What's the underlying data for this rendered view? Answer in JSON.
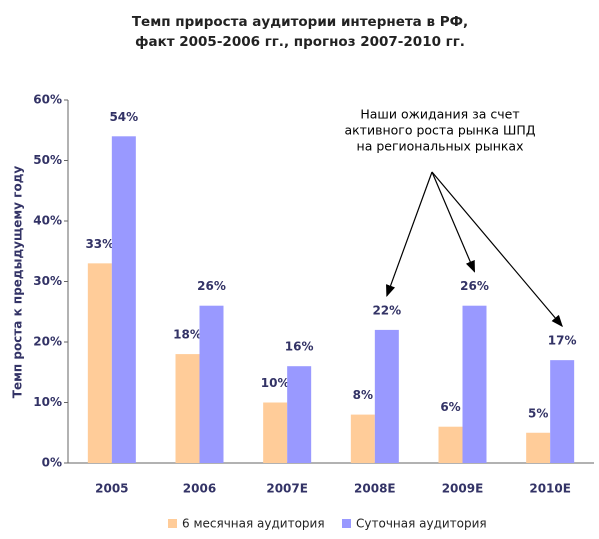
{
  "chart_data": {
    "type": "bar",
    "title": [
      "Темп прироста аудитории интернета в РФ,",
      "факт 2005-2006 гг., прогноз 2007-2010 гг."
    ],
    "y_label": "Темп роста к предыдущему году",
    "annotation": [
      "Наши ожидания за счет",
      "активного роста рынка ШПД",
      "на региональных рынках"
    ],
    "categories": [
      "2005",
      "2006",
      "2007E",
      "2008E",
      "2009E",
      "2010E"
    ],
    "series": [
      {
        "name": "6 месячная аудитория",
        "color": "#ffcc99",
        "values": [
          33,
          18,
          10,
          8,
          6,
          5
        ],
        "value_labels": [
          "33%",
          "18%",
          "10%",
          "8%",
          "6%",
          "5%"
        ]
      },
      {
        "name": "Суточная аудитория",
        "color": "#9999ff",
        "values": [
          54,
          26,
          16,
          22,
          26,
          17
        ],
        "value_labels": [
          "54%",
          "26%",
          "16%",
          "22%",
          "26%",
          "17%"
        ]
      }
    ],
    "ylim": [
      0,
      60
    ],
    "yticks": [
      {
        "value": 0,
        "label": "0%"
      },
      {
        "value": 10,
        "label": "10%"
      },
      {
        "value": 20,
        "label": "20%"
      },
      {
        "value": 30,
        "label": "30%"
      },
      {
        "value": 40,
        "label": "40%"
      },
      {
        "value": 50,
        "label": "50%"
      },
      {
        "value": 60,
        "label": "60%"
      }
    ],
    "grid": false,
    "legend": "bottom"
  }
}
